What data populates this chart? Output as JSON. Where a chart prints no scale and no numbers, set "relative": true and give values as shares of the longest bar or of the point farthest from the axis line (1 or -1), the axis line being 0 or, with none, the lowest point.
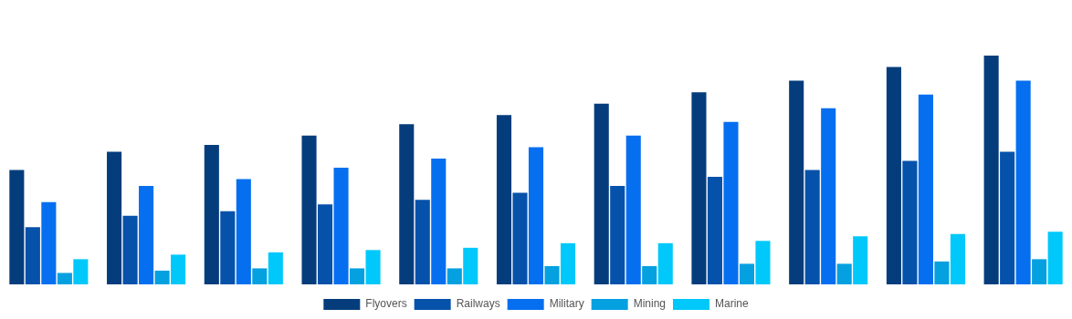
{
  "chart_data": {
    "type": "bar",
    "relative": true,
    "legend": "bottom",
    "categories": [
      null,
      null,
      null,
      null,
      null,
      null,
      null,
      null,
      null,
      null,
      null
    ],
    "series": [
      {
        "name": "Flyovers",
        "color": "#053d7c",
        "values": [
          0.5,
          0.58,
          0.61,
          0.65,
          0.7,
          0.74,
          0.79,
          0.84,
          0.89,
          0.95,
          1
        ]
      },
      {
        "name": "Railways",
        "color": "#0652aa",
        "values": [
          0.25,
          0.3,
          0.32,
          0.35,
          0.37,
          0.4,
          0.43,
          0.47,
          0.5,
          0.54,
          0.58
        ]
      },
      {
        "name": "Military",
        "color": "#066ff0",
        "values": [
          0.36,
          0.43,
          0.46,
          0.51,
          0.55,
          0.6,
          0.65,
          0.71,
          0.77,
          0.83,
          0.89
        ]
      },
      {
        "name": "Mining",
        "color": "#05a0e0",
        "values": [
          0.05,
          0.06,
          0.07,
          0.07,
          0.07,
          0.08,
          0.08,
          0.09,
          0.09,
          0.1,
          0.11
        ]
      },
      {
        "name": "Marine",
        "color": "#00c8fa",
        "values": [
          0.11,
          0.13,
          0.14,
          0.15,
          0.16,
          0.18,
          0.18,
          0.19,
          0.21,
          0.22,
          0.23
        ]
      }
    ]
  }
}
